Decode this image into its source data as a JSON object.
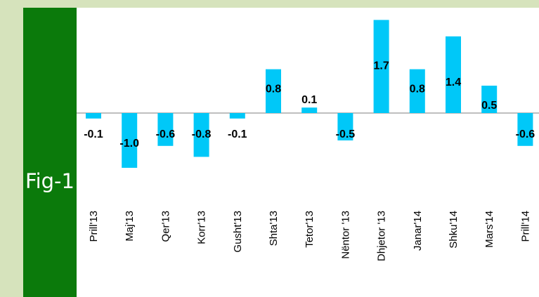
{
  "figure_label": "Fig-1",
  "colors": {
    "bar": "#00c8f8",
    "panel": "#0b7a0b",
    "background": "#d6e3bc",
    "axis": "#7f7f7f"
  },
  "chart_data": {
    "type": "bar",
    "categories": [
      "Prill'13",
      "Maj'13",
      "Qer'13",
      "Korr'13",
      "Gusht'13",
      "Shta'13",
      "Tetor'13",
      "Nëntor '13",
      "Dhjetor '13",
      "Janar'14",
      "Shku'14",
      "Mars'14",
      "Prill'14"
    ],
    "values": [
      -0.1,
      -1.0,
      -0.6,
      -0.8,
      -0.1,
      0.8,
      0.1,
      -0.5,
      1.7,
      0.8,
      1.4,
      0.5,
      -0.6
    ],
    "data_labels": [
      "-0.1",
      "-1.0",
      "-0.6",
      "-0.8",
      "-0.1",
      "0.8",
      "0.1",
      "-0.5",
      "1.7",
      "0.8",
      "1.4",
      "0.5",
      "-0.6"
    ],
    "title": "",
    "xlabel": "",
    "ylabel": "",
    "grid": false,
    "legend": "none"
  }
}
